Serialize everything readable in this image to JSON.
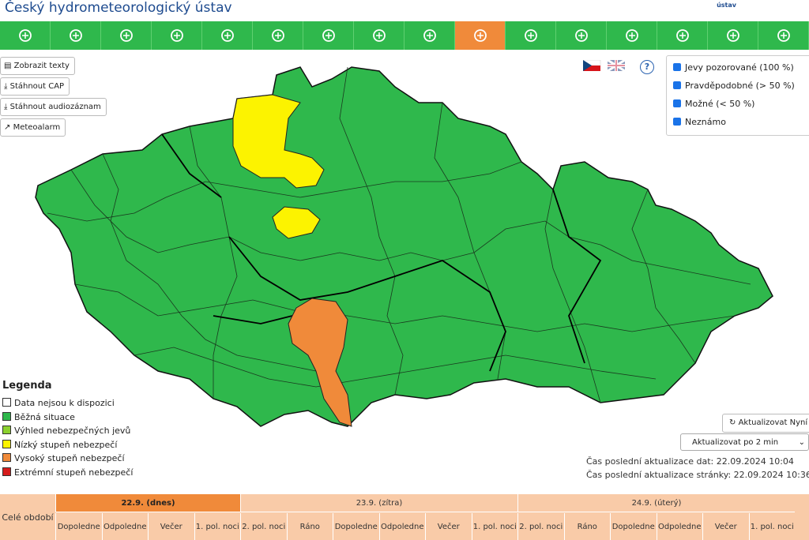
{
  "header": {
    "title": "Český hydrometeorologický ústav",
    "logo_text": "ústav"
  },
  "buttons": [
    "Zobrazit texty",
    "Stáhnout CAP",
    "Stáhnout audiozáznam",
    "Meteoalarm"
  ],
  "help": "?",
  "filters": [
    "Jevy pozorované (100 %)",
    "Pravděpodobné (> 50 %)",
    "Možné (< 50 %)",
    "Neznámo"
  ],
  "legend": {
    "title": "Legenda",
    "items": [
      "Data nejsou k dispozici",
      "Běžná situace",
      "Výhled nebezpečných jevů",
      "Nízký stupeň nebezpečí",
      "Vysoký stupeň nebezpečí",
      "Extrémní stupeň nebezpečí"
    ]
  },
  "update": {
    "button": "Aktualizovat Nyní",
    "select": "Aktualizovat po 2 min",
    "times": [
      "Čas poslední aktualizace dat: 22.09.2024 10:04",
      "Čas poslední aktualizace stránky: 22.09.2024 10:36"
    ]
  },
  "timeline": {
    "total": "Celé období",
    "days": [
      {
        "label": "22.9. (dnes)",
        "periods": [
          "Dopoledne",
          "Odpoledne",
          "Večer",
          "1. pol. noci"
        ]
      },
      {
        "label": "23.9. (zítra)",
        "periods": [
          "2. pol. noci",
          "Ráno",
          "Dopoledne",
          "Odpoledne",
          "Večer",
          "1. pol. noci"
        ]
      },
      {
        "label": "24.9. (úterý)",
        "periods": [
          "2. pol. noci",
          "Ráno",
          "Dopoledne",
          "Odpoledne",
          "Večer",
          "1. pol. noci"
        ]
      }
    ]
  }
}
